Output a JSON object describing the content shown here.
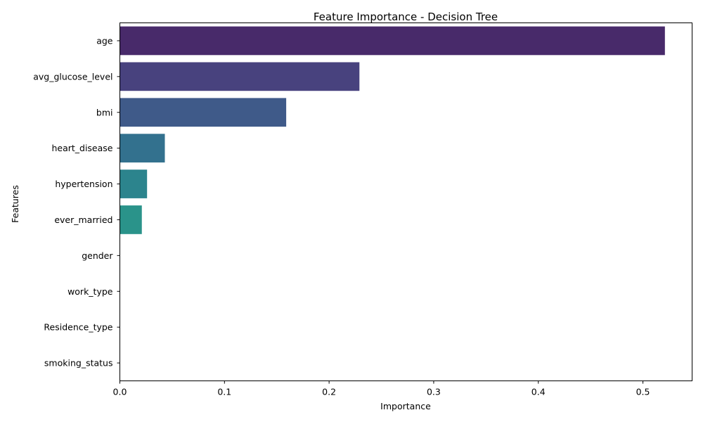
{
  "chart_data": {
    "type": "bar",
    "orientation": "horizontal",
    "title": "Feature Importance - Decision Tree",
    "xlabel": "Importance",
    "ylabel": "Features",
    "categories": [
      "age",
      "avg_glucose_level",
      "bmi",
      "heart_disease",
      "hypertension",
      "ever_married",
      "gender",
      "work_type",
      "Residence_type",
      "smoking_status"
    ],
    "values": [
      0.521,
      0.229,
      0.159,
      0.043,
      0.026,
      0.021,
      0.0,
      0.0,
      0.0,
      0.0
    ],
    "xlim": [
      0,
      0.547
    ],
    "xticks": [
      0.0,
      0.1,
      0.2,
      0.3,
      0.4,
      0.5
    ],
    "xtick_labels": [
      "0.0",
      "0.1",
      "0.2",
      "0.3",
      "0.4",
      "0.5"
    ],
    "grid": false,
    "legend": "none",
    "colors": [
      "#482a6a",
      "#48427e",
      "#3f5a89",
      "#33718e",
      "#2c848d",
      "#2a938a"
    ]
  }
}
